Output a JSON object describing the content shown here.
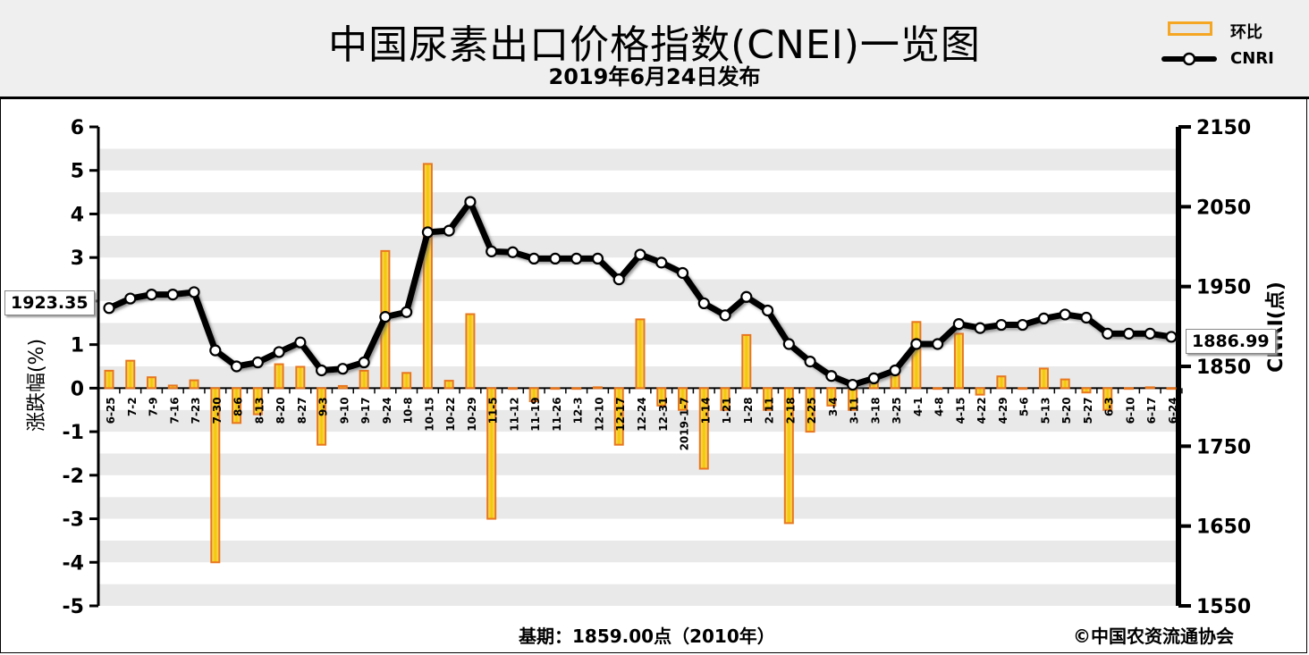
{
  "header": {
    "title": "中国尿素出口价格指数(CNEI)一览图",
    "subtitle": "2019年6月24日发布"
  },
  "legend": {
    "bar_label": "环比",
    "line_label": "CNRI"
  },
  "callouts": {
    "left_value": "1923.35",
    "right_value": "1886.99"
  },
  "footer": {
    "base_period": "基期：1859.00点（2010年）",
    "copyright": "©中国农资流通协会"
  },
  "colors": {
    "bar_fill": "#f5d000",
    "bar_edge": "#e8761e",
    "line": "#000000",
    "marker_fill": "#ffffff",
    "plot_band": "#e9e9e9",
    "header_bg": "#efefef"
  },
  "chart_data": {
    "type": "bar+line",
    "title": "中国尿素出口价格指数(CNEI)一览图",
    "categories": [
      "6-25",
      "7-2",
      "7-9",
      "7-16",
      "7-23",
      "7-30",
      "8-6",
      "8-13",
      "8-20",
      "8-27",
      "9-3",
      "9-10",
      "9-17",
      "9-24",
      "10-8",
      "10-15",
      "10-22",
      "10-29",
      "11-5",
      "11-12",
      "11-19",
      "11-26",
      "12-3",
      "12-10",
      "12-17",
      "12-24",
      "12-31",
      "2019-1-7",
      "1-14",
      "1-21",
      "1-28",
      "2-11",
      "2-18",
      "2-25",
      "3-4",
      "3-11",
      "3-18",
      "3-25",
      "4-1",
      "4-8",
      "4-15",
      "4-22",
      "4-29",
      "5-6",
      "5-13",
      "5-20",
      "5-27",
      "6-3",
      "6-10",
      "6-17",
      "6-24"
    ],
    "series": [
      {
        "name": "环比",
        "axis": "left",
        "kind": "bar",
        "values": [
          0.4,
          0.63,
          0.25,
          0.06,
          0.18,
          -4.0,
          -0.8,
          -0.6,
          0.55,
          0.49,
          -1.3,
          0.05,
          0.4,
          3.15,
          0.35,
          5.15,
          0.17,
          1.7,
          -3.0,
          0.0,
          -0.3,
          0.0,
          0.0,
          0.02,
          -1.3,
          1.58,
          -0.4,
          -0.5,
          -1.85,
          -0.5,
          1.22,
          -0.5,
          -3.1,
          -1.0,
          -0.4,
          -0.5,
          0.15,
          0.3,
          1.52,
          0.0,
          1.25,
          -0.15,
          0.27,
          0.0,
          0.45,
          0.2,
          -0.1,
          -0.5,
          0.0,
          0.02,
          0.0
        ]
      },
      {
        "name": "CNRI",
        "axis": "right",
        "kind": "line",
        "values": [
          1923,
          1935,
          1940,
          1940,
          1943,
          1870,
          1850,
          1855,
          1868,
          1880,
          1845,
          1847,
          1855,
          1912,
          1918,
          2018,
          2020,
          2056,
          1994,
          1993,
          1985,
          1985,
          1985,
          1985,
          1959,
          1990,
          1980,
          1967,
          1929,
          1914,
          1937,
          1920,
          1878,
          1856,
          1838,
          1827,
          1835,
          1845,
          1878,
          1878,
          1903,
          1898,
          1902,
          1902,
          1910,
          1915,
          1911,
          1891,
          1891,
          1891,
          1887
        ]
      }
    ],
    "y_left": {
      "label": "涨跌幅(%)",
      "range": [
        -5,
        6
      ],
      "ticks": [
        6,
        5,
        4,
        3,
        2,
        1,
        0,
        -1,
        -2,
        -3,
        -4,
        -5
      ]
    },
    "y_right": {
      "label": "CNRI(点)",
      "range": [
        1550,
        2150
      ],
      "ticks": [
        2150,
        2050,
        1950,
        1850,
        1750,
        1650,
        1550
      ]
    },
    "grid": true,
    "legend_position": "top-right"
  }
}
